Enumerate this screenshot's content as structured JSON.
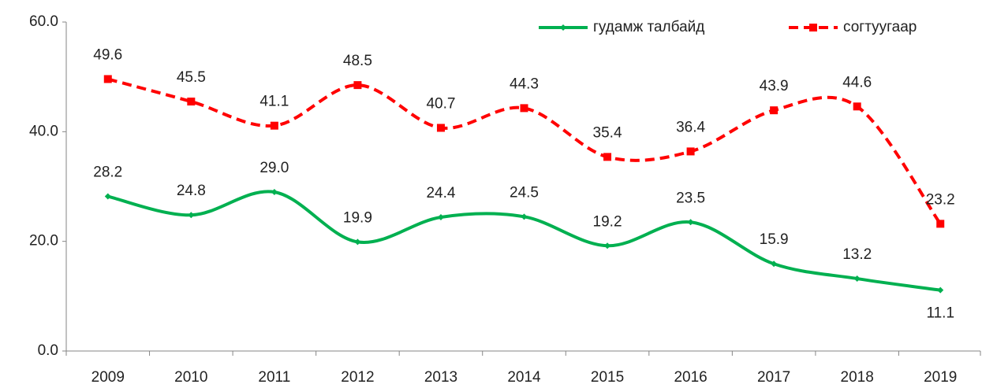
{
  "chart_data": {
    "type": "line",
    "categories": [
      "2009",
      "2010",
      "2011",
      "2012",
      "2013",
      "2014",
      "2015",
      "2016",
      "2017",
      "2018",
      "2019"
    ],
    "series": [
      {
        "name": "гудамж талбайд",
        "color": "#00b050",
        "dashed": false,
        "marker": "diamond",
        "values": [
          28.2,
          24.8,
          29.0,
          19.9,
          24.4,
          24.5,
          19.2,
          23.5,
          15.9,
          13.2,
          11.1
        ],
        "value_labels": [
          "28.2",
          "24.8",
          "29.0",
          "19.9",
          "24.4",
          "24.5",
          "19.2",
          "23.5",
          "15.9",
          "13.2",
          "11.1"
        ]
      },
      {
        "name": "согтуугаар",
        "color": "#ff0000",
        "dashed": true,
        "marker": "square",
        "values": [
          49.6,
          45.5,
          41.1,
          48.5,
          40.7,
          44.3,
          35.4,
          36.4,
          43.9,
          44.6,
          23.2
        ],
        "value_labels": [
          "49.6",
          "45.5",
          "41.1",
          "48.5",
          "40.7",
          "44.3",
          "35.4",
          "36.4",
          "43.9",
          "44.6",
          "23.2"
        ]
      }
    ],
    "ylim": [
      0,
      60
    ],
    "yticks": [
      {
        "value": 0,
        "label": "0.0"
      },
      {
        "value": 20,
        "label": "20.0"
      },
      {
        "value": 40,
        "label": "40.0"
      },
      {
        "value": 60,
        "label": "60.0"
      }
    ],
    "grid": false,
    "smooth": true,
    "legend": "top-right"
  }
}
